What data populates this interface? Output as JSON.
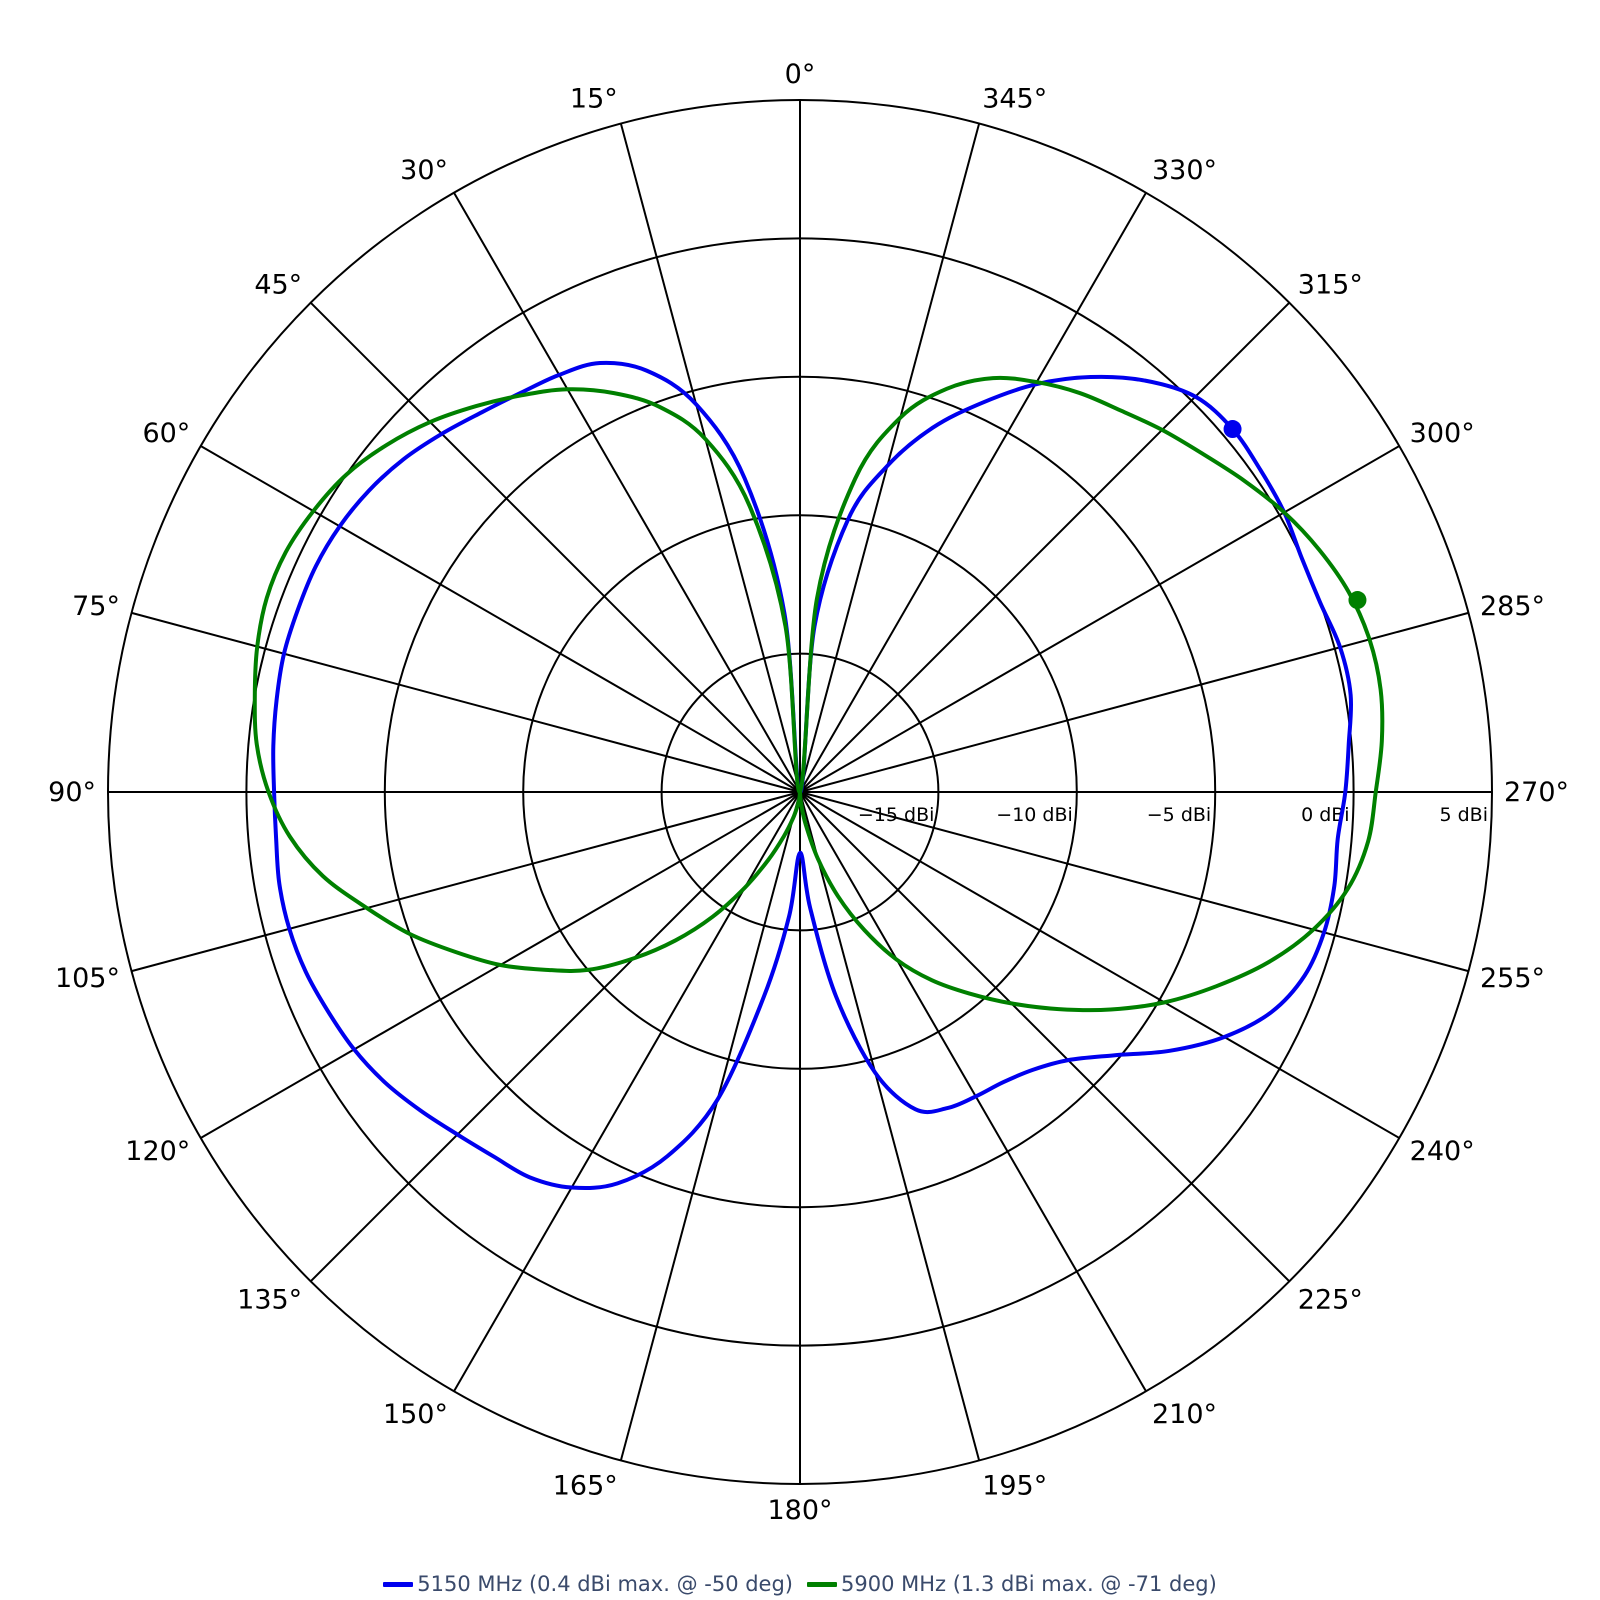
{
  "chart_data": {
    "type": "line",
    "subtype": "polar",
    "angle_direction": "counterclockwise",
    "angle_zero": "top",
    "angle_unit": "deg",
    "angle_ticks": [
      0,
      15,
      30,
      45,
      60,
      75,
      90,
      105,
      120,
      135,
      150,
      165,
      180,
      195,
      210,
      225,
      240,
      255,
      270,
      285,
      300,
      315,
      330,
      345
    ],
    "angle_tick_labels": [
      "0°",
      "15°",
      "30°",
      "45°",
      "60°",
      "75°",
      "90°",
      "105°",
      "120°",
      "135°",
      "150°",
      "165°",
      "180°",
      "195°",
      "210°",
      "225°",
      "240°",
      "255°",
      "270°",
      "285°",
      "300°",
      "315°",
      "330°",
      "345°"
    ],
    "radial_range": [
      -20,
      5
    ],
    "radial_rings": [
      -20,
      -15,
      -10,
      -5,
      0,
      5
    ],
    "radial_ticks": [
      -15,
      -10,
      -5,
      0,
      5
    ],
    "radial_tick_labels": [
      "−15 dBi",
      "−10 dBi",
      "−5 dBi",
      "0 dBi",
      "5 dBi"
    ],
    "grid": true,
    "legend_position": "bottom",
    "series": [
      {
        "name": "5150 MHz (0.4 dBi max. @ -50 deg)",
        "color": "#0000ee",
        "angles": [
          0,
          5,
          10,
          15,
          20,
          25,
          30,
          35,
          40,
          45,
          50,
          55,
          60,
          65,
          70,
          75,
          80,
          85,
          90,
          95,
          100,
          105,
          110,
          115,
          120,
          125,
          130,
          135,
          140,
          145,
          150,
          155,
          160,
          165,
          170,
          175,
          180,
          185,
          190,
          195,
          200,
          205,
          210,
          215,
          220,
          225,
          230,
          235,
          240,
          245,
          250,
          255,
          260,
          265,
          270,
          275,
          280,
          285,
          290,
          295,
          300,
          305,
          310,
          315,
          320,
          325,
          330,
          335,
          340,
          345,
          350,
          355,
          360
        ],
        "gain_dbi": [
          -20,
          -13.5,
          -8.5,
          -5.5,
          -3.8,
          -2.9,
          -2.6,
          -2.4,
          -2.1,
          -1.7,
          -1.3,
          -1.0,
          -0.8,
          -0.7,
          -0.7,
          -0.7,
          -0.8,
          -0.9,
          -1.0,
          -1.0,
          -0.9,
          -0.9,
          -1.0,
          -1.2,
          -1.4,
          -1.7,
          -2.1,
          -2.5,
          -2.8,
          -3.0,
          -3.5,
          -4.4,
          -6.0,
          -8.5,
          -12.5,
          -15.5,
          -17.8,
          -15.8,
          -12.5,
          -9.5,
          -7.8,
          -7.4,
          -7.3,
          -7.2,
          -6.9,
          -6.3,
          -5.2,
          -3.7,
          -2.3,
          -1.2,
          -0.6,
          -0.4,
          -0.4,
          -0.5,
          -0.3,
          -0.1,
          0.2,
          0.2,
          0.0,
          0.0,
          0.2,
          0.3,
          0.4,
          0.2,
          -0.6,
          -1.7,
          -3.0,
          -4.5,
          -6.0,
          -7.8,
          -10.0,
          -14.0,
          -20
        ],
        "marker": {
          "angle": -50,
          "gain_dbi": 0.4,
          "label": "max"
        }
      },
      {
        "name": "5900 MHz (1.3 dBi max. @ -71 deg)",
        "color": "#008000",
        "angles": [
          0,
          5,
          10,
          15,
          20,
          25,
          30,
          35,
          40,
          45,
          50,
          55,
          60,
          65,
          70,
          75,
          80,
          85,
          90,
          95,
          100,
          105,
          110,
          115,
          120,
          125,
          130,
          135,
          140,
          145,
          150,
          155,
          160,
          165,
          170,
          175,
          180,
          185,
          190,
          195,
          200,
          205,
          210,
          215,
          220,
          225,
          230,
          235,
          240,
          245,
          250,
          255,
          260,
          265,
          270,
          275,
          280,
          285,
          290,
          295,
          300,
          305,
          310,
          315,
          320,
          325,
          330,
          335,
          340,
          345,
          350,
          355,
          360
        ],
        "gain_dbi": [
          -20,
          -14.0,
          -9.5,
          -6.8,
          -5.2,
          -4.1,
          -3.2,
          -2.5,
          -1.8,
          -1.1,
          -0.5,
          0.0,
          0.3,
          0.5,
          0.5,
          0.3,
          0.0,
          -0.3,
          -0.8,
          -1.5,
          -2.5,
          -3.8,
          -5.0,
          -6.3,
          -7.5,
          -8.8,
          -10.0,
          -11.5,
          -13.0,
          -14.5,
          -16.0,
          -17.3,
          -18.3,
          -19.0,
          -19.5,
          -19.8,
          -20.0,
          -19.6,
          -18.8,
          -17.5,
          -16.0,
          -14.5,
          -13.0,
          -11.7,
          -10.5,
          -9.2,
          -7.8,
          -6.3,
          -4.8,
          -3.4,
          -2.0,
          -0.8,
          0.1,
          0.6,
          0.8,
          1.1,
          1.3,
          1.3,
          1.1,
          0.7,
          0.2,
          -0.4,
          -1.0,
          -1.5,
          -2.0,
          -2.4,
          -2.9,
          -3.5,
          -4.5,
          -6.0,
          -8.5,
          -13.0,
          -20
        ],
        "marker": {
          "angle": -71,
          "gain_dbi": 1.3,
          "label": "max"
        }
      }
    ]
  }
}
